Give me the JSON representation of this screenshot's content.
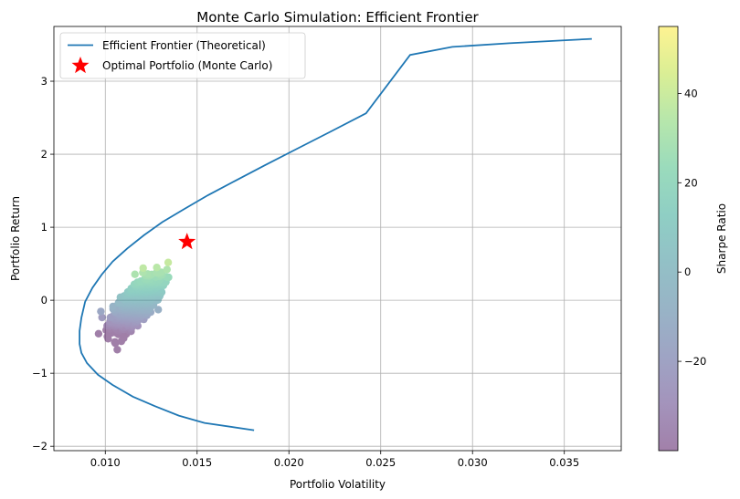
{
  "chart_data": {
    "type": "scatter",
    "title": "Monte Carlo Simulation: Efficient Frontier",
    "xlabel": "Portfolio Volatility",
    "ylabel": "Portfolio Return",
    "xlim": [
      0.0072,
      0.0381
    ],
    "ylim": [
      -2.06,
      3.75
    ],
    "xticks": [
      0.01,
      0.015,
      0.02,
      0.025,
      0.03,
      0.035
    ],
    "xtick_labels": [
      "0.010",
      "0.015",
      "0.020",
      "0.025",
      "0.030",
      "0.035"
    ],
    "yticks": [
      -2,
      -1,
      0,
      1,
      2,
      3
    ],
    "ytick_labels": [
      "−2",
      "−1",
      "0",
      "1",
      "2",
      "3"
    ],
    "grid": true,
    "legend": {
      "placement": "top-left",
      "entries": [
        {
          "label": "Efficient Frontier (Theoretical)",
          "kind": "line",
          "color": "#1f77b4"
        },
        {
          "label": "Optimal Portfolio (Monte Carlo)",
          "kind": "star",
          "color": "#ff0000"
        }
      ]
    },
    "frontier": {
      "name": "Efficient Frontier (Theoretical)",
      "color": "#1f77b4",
      "x": [
        0.0181,
        0.0154,
        0.014,
        0.0127,
        0.0115,
        0.0104,
        0.0096,
        0.009,
        0.0087,
        0.0086,
        0.0086,
        0.0087,
        0.0089,
        0.0093,
        0.0098,
        0.0104,
        0.0112,
        0.0121,
        0.0131,
        0.0143,
        0.0156,
        0.0171,
        0.0187,
        0.0204,
        0.0222,
        0.0242,
        0.0266,
        0.0289,
        0.032,
        0.0365
      ],
      "y": [
        -1.78,
        -1.68,
        -1.58,
        -1.45,
        -1.32,
        -1.16,
        -1.02,
        -0.86,
        -0.72,
        -0.6,
        -0.42,
        -0.24,
        -0.02,
        0.17,
        0.35,
        0.53,
        0.71,
        0.89,
        1.07,
        1.25,
        1.44,
        1.64,
        1.85,
        2.07,
        2.3,
        2.56,
        3.36,
        3.47,
        3.52,
        3.58
      ]
    },
    "optimal": {
      "name": "Optimal Portfolio (Monte Carlo)",
      "x": 0.01445,
      "y": 0.8,
      "color": "#ff0000"
    },
    "simulation": {
      "count": 1000,
      "x_center": 0.0117,
      "y_center": -0.05,
      "vmin": -40,
      "vmax": 55
    },
    "colorbar": {
      "label": "Sharpe Ratio",
      "ticks": [
        -20,
        0,
        20,
        40
      ],
      "tick_labels": [
        "−20",
        "0",
        "20",
        "40"
      ],
      "colormap": [
        "#440154",
        "#482878",
        "#3e4989",
        "#31688e",
        "#26828e",
        "#1f9e89",
        "#35b779",
        "#6ece58",
        "#b5de2b",
        "#fde725"
      ]
    }
  }
}
